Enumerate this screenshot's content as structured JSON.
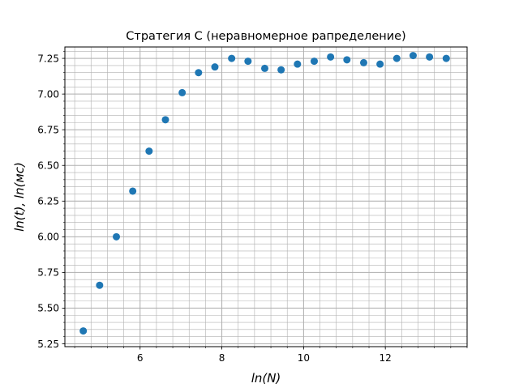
{
  "chart_data": {
    "type": "scatter",
    "title": "Стратегия C (неравномерное рапределение)",
    "xlabel": "ln(N)",
    "ylabel": "ln(t), ln(мс)",
    "xlim": [
      4.16,
      14.0
    ],
    "ylim": [
      5.23,
      7.33
    ],
    "xticks": [
      6,
      8,
      10,
      12
    ],
    "xtick_labels": [
      "6",
      "8",
      "10",
      "12"
    ],
    "yticks": [
      5.25,
      5.5,
      5.75,
      6.0,
      6.25,
      6.5,
      6.75,
      7.0,
      7.25
    ],
    "ytick_labels": [
      "5.25",
      "5.50",
      "5.75",
      "6.00",
      "6.25",
      "6.50",
      "6.75",
      "7.00",
      "7.25"
    ],
    "x_minor_step": 0.4,
    "y_minor_step": 0.05,
    "grid": true,
    "marker_color": "#1f77b4",
    "series": [
      {
        "x": [
          4.61,
          5.01,
          5.42,
          5.82,
          6.22,
          6.62,
          7.03,
          7.43,
          7.83,
          8.24,
          8.64,
          9.05,
          9.45,
          9.85,
          10.26,
          10.66,
          11.06,
          11.47,
          11.87,
          12.28,
          12.68,
          13.08,
          13.49
        ],
        "y": [
          5.34,
          5.66,
          6.0,
          6.32,
          6.6,
          6.82,
          7.01,
          7.15,
          7.19,
          7.25,
          7.23,
          7.18,
          7.17,
          7.21,
          7.23,
          7.26,
          7.24,
          7.22,
          7.21,
          7.25,
          7.27,
          7.26,
          7.25
        ]
      }
    ]
  }
}
